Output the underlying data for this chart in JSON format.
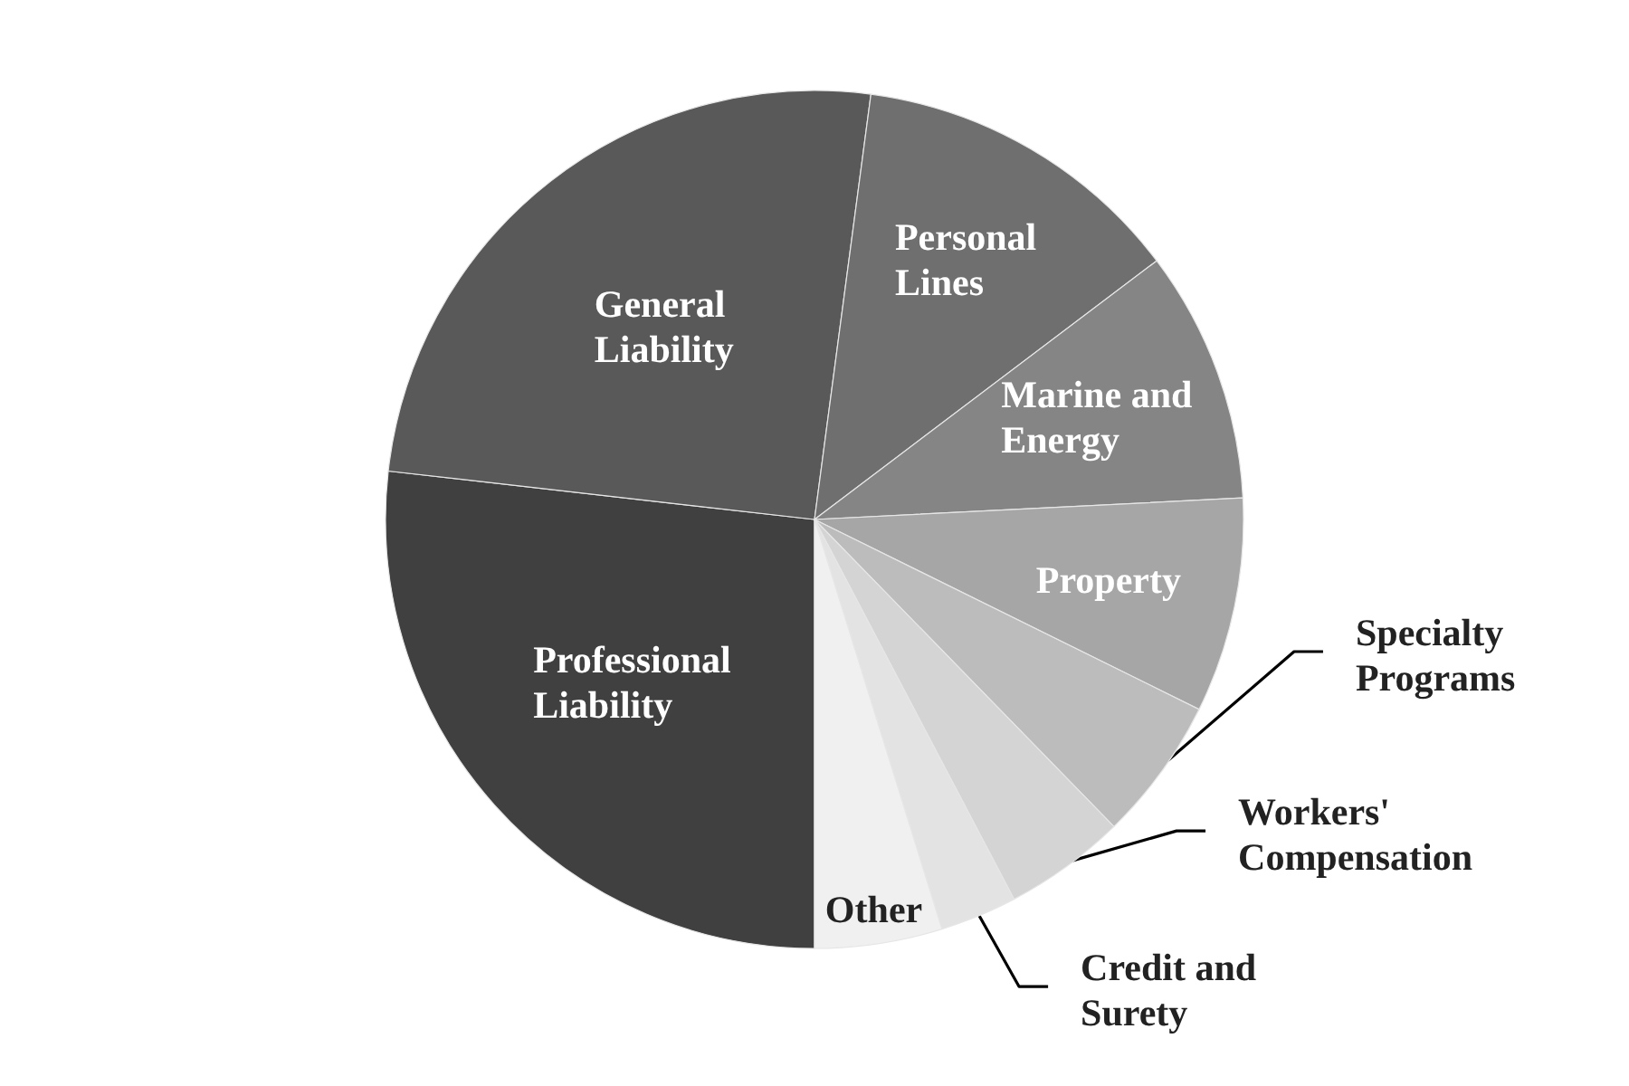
{
  "chart_data": {
    "type": "pie",
    "categories": [
      "Professional Liability",
      "General Liability",
      "Personal Lines",
      "Marine and Energy",
      "Property",
      "Specialty Programs",
      "Workers' Compensation",
      "Credit and Surety",
      "Other"
    ],
    "values": [
      26.8,
      25.3,
      12.6,
      9.5,
      8.1,
      5.4,
      4.6,
      2.9,
      4.8
    ],
    "colors": [
      "#404040",
      "#595959",
      "#6f6f6f",
      "#858585",
      "#a6a6a6",
      "#bcbcbc",
      "#d4d4d4",
      "#e3e3e3",
      "#f0f0f0"
    ]
  }
}
